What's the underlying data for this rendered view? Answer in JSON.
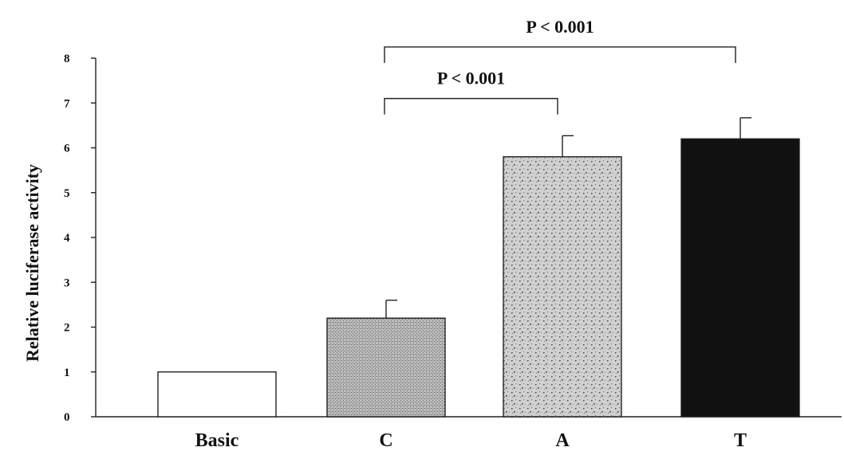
{
  "chart_data": {
    "type": "bar",
    "title": "",
    "xlabel": "",
    "ylabel": "Relative luciferase activity",
    "ylim": [
      0,
      8
    ],
    "yticks": [
      0,
      1,
      2,
      3,
      4,
      5,
      6,
      7,
      8
    ],
    "categories": [
      "Basic",
      "C",
      "A",
      "T"
    ],
    "values": [
      1.0,
      2.2,
      5.8,
      6.2
    ],
    "errors": [
      0,
      0.4,
      0.47,
      0.47
    ],
    "bar_fills": [
      "white",
      "fine-dot",
      "speckle",
      "black"
    ],
    "grid": false,
    "legend": "none",
    "annotations": [
      {
        "text": "P < 0.001",
        "from": "C",
        "to": "A",
        "y": 7.1
      },
      {
        "text": "P < 0.001",
        "from": "C",
        "to": "T",
        "y": 8.25
      }
    ]
  }
}
